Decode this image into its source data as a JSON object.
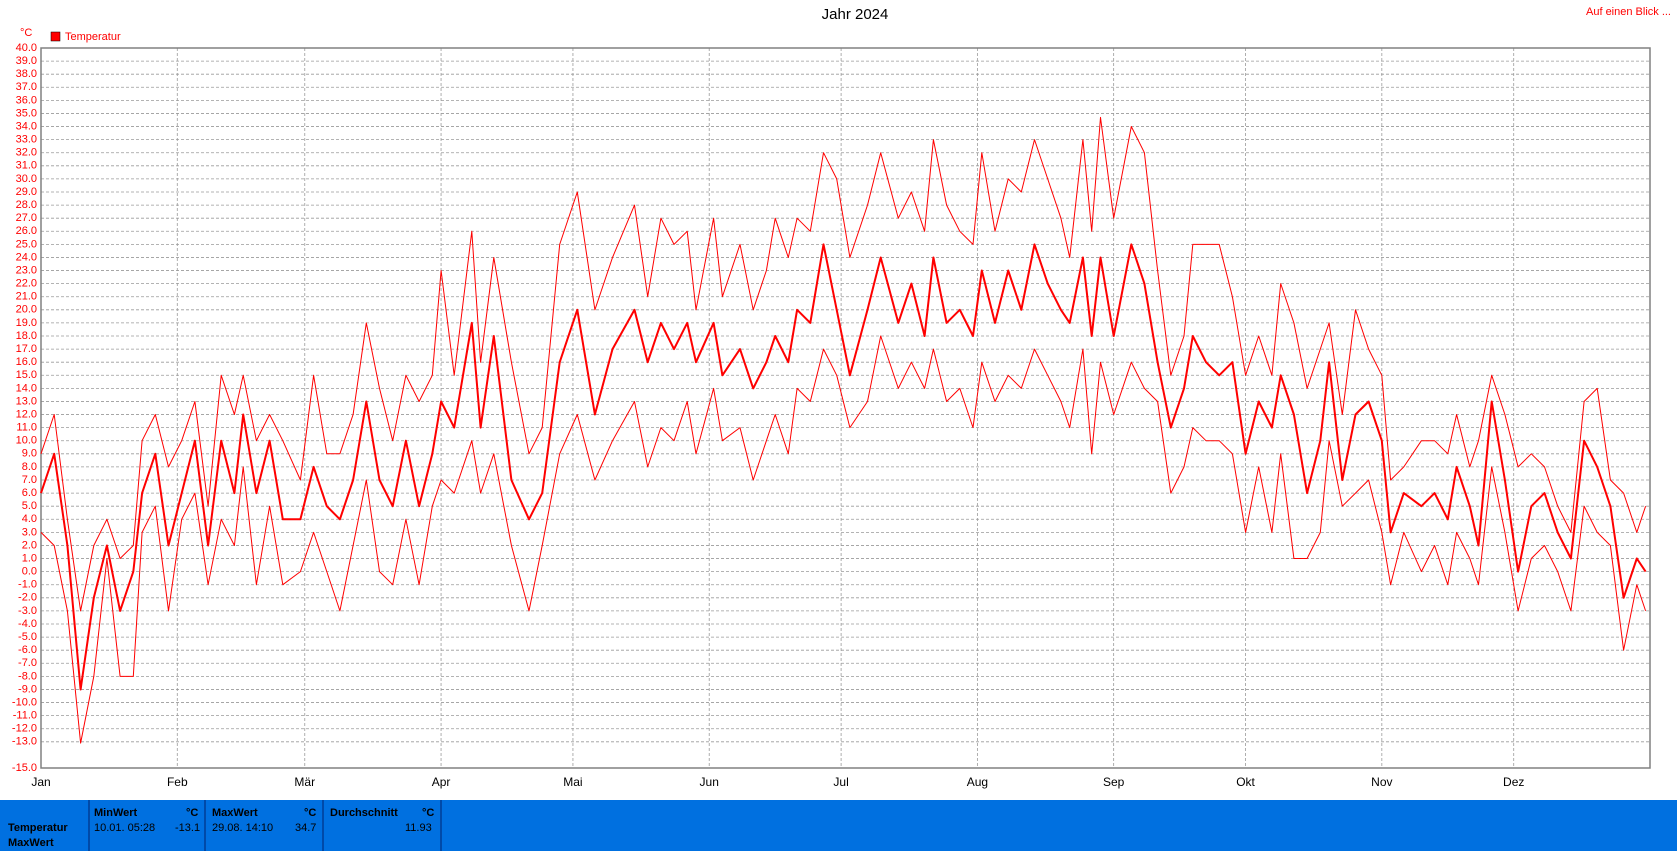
{
  "header_link": "Auf einen Blick ...",
  "chart_data": {
    "type": "line",
    "title": "Jahr 2024",
    "y_unit": "°C",
    "grid": true,
    "x": [
      1,
      4,
      7,
      10,
      13,
      16,
      19,
      22,
      24,
      27,
      30,
      33,
      36,
      39,
      42,
      45,
      47,
      50,
      53,
      56,
      60,
      63,
      66,
      69,
      72,
      75,
      78,
      81,
      84,
      87,
      90,
      92,
      95,
      99,
      101,
      104,
      108,
      112,
      115,
      119,
      123,
      127,
      131,
      136,
      139,
      142,
      145,
      148,
      150,
      154,
      156,
      160,
      163,
      166,
      168,
      171,
      173,
      176,
      179,
      182,
      185,
      189,
      192,
      196,
      199,
      202,
      204,
      207,
      210,
      213,
      215,
      218,
      221,
      224,
      227,
      230,
      233,
      235,
      238,
      240,
      242,
      245,
      249,
      252,
      255,
      258,
      261,
      263,
      266,
      269,
      272,
      275,
      278,
      281,
      283,
      286,
      289,
      292,
      294,
      297,
      300,
      303,
      306,
      308,
      311,
      315,
      318,
      321,
      323,
      326,
      328,
      331,
      334,
      337,
      340,
      343,
      346,
      349,
      352,
      355,
      358,
      361,
      364,
      366
    ],
    "xlim": [
      1,
      367
    ],
    "xticks": [
      {
        "value": 1,
        "label": "Jan"
      },
      {
        "value": 32,
        "label": "Feb"
      },
      {
        "value": 61,
        "label": "Mär"
      },
      {
        "value": 92,
        "label": "Apr"
      },
      {
        "value": 122,
        "label": "Mai"
      },
      {
        "value": 153,
        "label": "Jun"
      },
      {
        "value": 183,
        "label": "Jul"
      },
      {
        "value": 214,
        "label": "Aug"
      },
      {
        "value": 245,
        "label": "Sep"
      },
      {
        "value": 275,
        "label": "Okt"
      },
      {
        "value": 306,
        "label": "Nov"
      },
      {
        "value": 336,
        "label": "Dez"
      }
    ],
    "ylim": [
      -15,
      40
    ],
    "yticks": [
      {
        "value": 40,
        "label": "40.0"
      },
      {
        "value": 39,
        "label": "39.0"
      },
      {
        "value": 38,
        "label": "38.0"
      },
      {
        "value": 37,
        "label": "37.0"
      },
      {
        "value": 36,
        "label": "36.0"
      },
      {
        "value": 35,
        "label": "35.0"
      },
      {
        "value": 34,
        "label": "34.0"
      },
      {
        "value": 33,
        "label": "33.0"
      },
      {
        "value": 32,
        "label": "32.0"
      },
      {
        "value": 31,
        "label": "31.0"
      },
      {
        "value": 30,
        "label": "30.0"
      },
      {
        "value": 29,
        "label": "29.0"
      },
      {
        "value": 28,
        "label": "28.0"
      },
      {
        "value": 27,
        "label": "27.0"
      },
      {
        "value": 26,
        "label": "26.0"
      },
      {
        "value": 25,
        "label": "25.0"
      },
      {
        "value": 24,
        "label": "24.0"
      },
      {
        "value": 23,
        "label": "23.0"
      },
      {
        "value": 22,
        "label": "22.0"
      },
      {
        "value": 21,
        "label": "21.0"
      },
      {
        "value": 20,
        "label": "20.0"
      },
      {
        "value": 19,
        "label": "19.0"
      },
      {
        "value": 18,
        "label": "18.0"
      },
      {
        "value": 17,
        "label": "17.0"
      },
      {
        "value": 16,
        "label": "16.0"
      },
      {
        "value": 15,
        "label": "15.0"
      },
      {
        "value": 14,
        "label": "14.0"
      },
      {
        "value": 13,
        "label": "13.0"
      },
      {
        "value": 12,
        "label": "12.0"
      },
      {
        "value": 11,
        "label": "11.0"
      },
      {
        "value": 10,
        "label": "10.0"
      },
      {
        "value": 9,
        "label": "9.0"
      },
      {
        "value": 8,
        "label": "8.0"
      },
      {
        "value": 7,
        "label": "7.0"
      },
      {
        "value": 6,
        "label": "6.0"
      },
      {
        "value": 5,
        "label": "5.0"
      },
      {
        "value": 4,
        "label": "4.0"
      },
      {
        "value": 3,
        "label": "3.0"
      },
      {
        "value": 2,
        "label": "2.0"
      },
      {
        "value": 1,
        "label": "1.0"
      },
      {
        "value": 0,
        "label": "0.0"
      },
      {
        "value": -1,
        "label": "-1.0"
      },
      {
        "value": -2,
        "label": "-2.0"
      },
      {
        "value": -3,
        "label": "-3.0"
      },
      {
        "value": -4,
        "label": "-4.0"
      },
      {
        "value": -5,
        "label": "-5.0"
      },
      {
        "value": -6,
        "label": "-6.0"
      },
      {
        "value": -7,
        "label": "-7.0"
      },
      {
        "value": -8,
        "label": "-8.0"
      },
      {
        "value": -9,
        "label": "-9.0"
      },
      {
        "value": -10,
        "label": "-10.0"
      },
      {
        "value": -11,
        "label": "-11.0"
      },
      {
        "value": -12,
        "label": "-12.0"
      },
      {
        "value": -13,
        "label": "-13.0"
      },
      {
        "value": -15,
        "label": "-15.0"
      }
    ],
    "series": [
      {
        "name": "Temperatur",
        "color": "#ff0000",
        "values": [
          6,
          9,
          2,
          -9,
          -2,
          2,
          -3,
          0,
          6,
          9,
          2,
          6,
          10,
          2,
          10,
          6,
          12,
          6,
          10,
          4,
          4,
          8,
          5,
          4,
          7,
          13,
          7,
          5,
          10,
          5,
          9,
          13,
          11,
          19,
          11,
          18,
          7,
          4,
          6,
          16,
          20,
          12,
          17,
          20,
          16,
          19,
          17,
          19,
          16,
          19,
          15,
          17,
          14,
          16,
          18,
          16,
          20,
          19,
          25,
          20,
          15,
          20,
          24,
          19,
          22,
          18,
          24,
          19,
          20,
          18,
          23,
          19,
          23,
          20,
          25,
          22,
          20,
          19,
          24,
          18,
          24,
          18,
          25,
          22,
          16,
          11,
          14,
          18,
          16,
          15,
          16,
          9,
          13,
          11,
          15,
          12,
          6,
          10,
          16,
          7,
          12,
          13,
          10,
          3,
          6,
          5,
          6,
          4,
          8,
          5,
          2,
          13,
          7,
          0,
          5,
          6,
          3,
          1,
          10,
          8,
          5,
          -2,
          1,
          0
        ]
      },
      {
        "color": "#ff0000",
        "values": [
          9,
          12,
          4,
          -3,
          2,
          4,
          1,
          2,
          10,
          12,
          8,
          10,
          13,
          5,
          15,
          12,
          15,
          10,
          12,
          10,
          7,
          15,
          9,
          9,
          12,
          19,
          14,
          10,
          15,
          13,
          15,
          23,
          15,
          26,
          16,
          24,
          16,
          9,
          11,
          25,
          29,
          20,
          24,
          28,
          21,
          27,
          25,
          26,
          20,
          27,
          21,
          25,
          20,
          23,
          27,
          24,
          27,
          26,
          32,
          30,
          24,
          28,
          32,
          27,
          29,
          26,
          33,
          28,
          26,
          25,
          32,
          26,
          30,
          29,
          33,
          30,
          27,
          24,
          33,
          26,
          34.7,
          27,
          34,
          32,
          23,
          15,
          18,
          25,
          25,
          25,
          21,
          15,
          18,
          15,
          22,
          19,
          14,
          17,
          19,
          12,
          20,
          17,
          15,
          7,
          8,
          10,
          10,
          9,
          12,
          8,
          10,
          15,
          12,
          8,
          9,
          8,
          5,
          3,
          13,
          14,
          7,
          6,
          3,
          5
        ]
      },
      {
        "color": "#ff0000",
        "values": [
          3,
          2,
          -3,
          -13.1,
          -8,
          1,
          -8,
          -8,
          3,
          5,
          -3,
          4,
          6,
          -1,
          4,
          2,
          8,
          -1,
          5,
          -1,
          0,
          3,
          0,
          -3,
          2,
          7,
          0,
          -1,
          4,
          -1,
          5,
          7,
          6,
          10,
          6,
          9,
          2,
          -3,
          2,
          9,
          12,
          7,
          10,
          13,
          8,
          11,
          10,
          13,
          9,
          14,
          10,
          11,
          7,
          10,
          12,
          9,
          14,
          13,
          17,
          15,
          11,
          13,
          18,
          14,
          16,
          14,
          17,
          13,
          14,
          11,
          16,
          13,
          15,
          14,
          17,
          15,
          13,
          11,
          17,
          9,
          16,
          12,
          16,
          14,
          13,
          6,
          8,
          11,
          10,
          10,
          9,
          3,
          8,
          3,
          9,
          1,
          1,
          3,
          10,
          5,
          6,
          7,
          3,
          -1,
          3,
          0,
          2,
          -1,
          3,
          1,
          -1,
          8,
          3,
          -3,
          1,
          2,
          0,
          -3,
          5,
          3,
          2,
          -6,
          -1,
          -3
        ]
      }
    ]
  },
  "summary": {
    "row_label": "Temperatur",
    "row_label_2": "MaxWert",
    "min_header": "MinWert",
    "min_unit": "°C",
    "min_time": "10.01.  05:28",
    "min_value": "-13.1",
    "max_header": "MaxWert",
    "max_unit": "°C",
    "max_time": "29.08.  14:10",
    "max_value": "34.7",
    "avg_header": "Durchschnitt",
    "avg_unit": "°C",
    "avg_value": "11.93"
  }
}
